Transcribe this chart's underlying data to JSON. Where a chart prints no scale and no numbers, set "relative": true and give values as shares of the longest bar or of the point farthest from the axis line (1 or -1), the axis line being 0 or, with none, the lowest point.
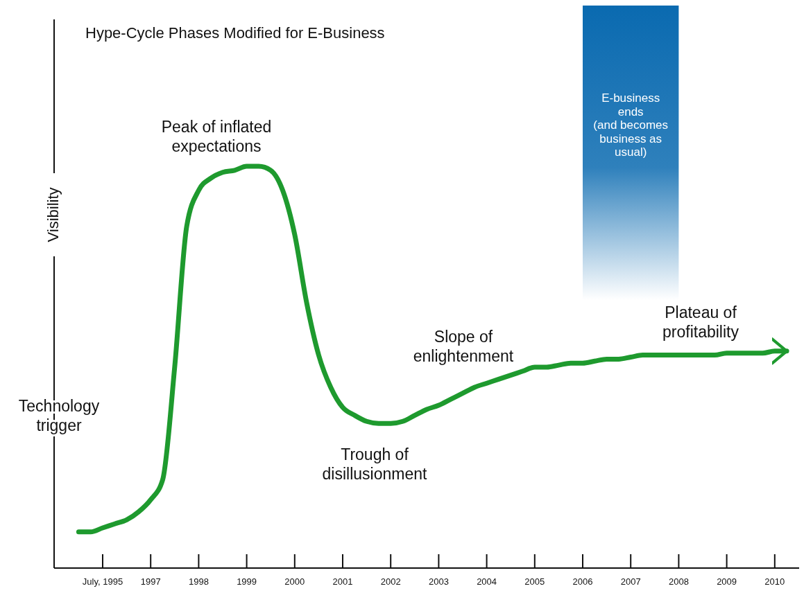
{
  "chart_data": {
    "type": "line",
    "title": "Hype-Cycle Phases Modified for E-Business",
    "ylabel": "Visibility",
    "relative": true,
    "categories": [
      null,
      null,
      "July, 1995",
      null,
      null,
      null,
      "1997",
      null,
      null,
      null,
      "1998",
      null,
      null,
      null,
      "1999",
      null,
      null,
      null,
      "2000",
      null,
      null,
      null,
      "2001",
      null,
      null,
      null,
      "2002",
      null,
      null,
      null,
      "2003",
      null,
      null,
      null,
      "2004",
      null,
      null,
      null,
      "2005",
      null,
      null,
      null,
      "2006",
      null,
      null,
      null,
      "2007",
      null,
      null,
      null,
      "2008",
      null,
      null,
      null,
      "2009",
      null,
      null,
      null,
      "2010",
      null
    ],
    "series": [
      {
        "color": "#1e9a2e",
        "values": [
          0.09,
          0.09,
          0.1,
          0.11,
          0.12,
          0.14,
          0.17,
          0.22,
          0.5,
          0.85,
          0.94,
          0.97,
          0.985,
          0.99,
          1.0,
          1.0,
          0.99,
          0.94,
          0.83,
          0.66,
          0.53,
          0.45,
          0.4,
          0.38,
          0.365,
          0.36,
          0.36,
          0.365,
          0.38,
          0.395,
          0.405,
          0.42,
          0.435,
          0.45,
          0.46,
          0.47,
          0.48,
          0.49,
          0.5,
          0.5,
          0.505,
          0.51,
          0.51,
          0.515,
          0.52,
          0.52,
          0.525,
          0.53,
          0.53,
          0.53,
          0.53,
          0.53,
          0.53,
          0.53,
          0.535,
          0.535,
          0.535,
          0.535,
          0.54,
          0.54
        ]
      }
    ],
    "bands": [
      {
        "axis": "x",
        "from": "2006",
        "to": "2008",
        "color": "#0a6ab0",
        "label": "E-business\nends\n\n(and becomes\nbusiness as\nusual)"
      }
    ],
    "annotations": [
      "Technology\ntrigger",
      "Peak of inflated\nexpectations",
      "Trough of\ndisillusionment",
      "Slope of\nenlightenment",
      "Plateau of\nprofitability"
    ],
    "marker": "none"
  }
}
